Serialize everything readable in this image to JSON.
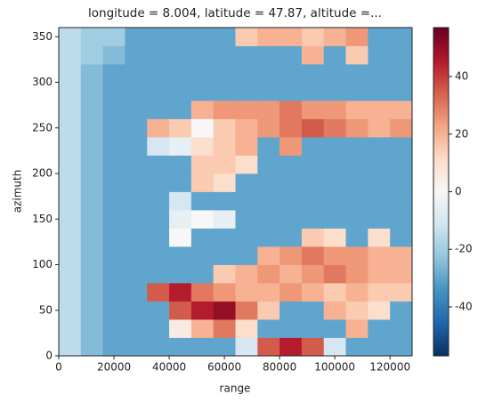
{
  "chart_data": {
    "type": "heatmap",
    "title": "longitude = 8.004, latitude = 47.87, altitude =...",
    "xlabel": "range",
    "ylabel": "azimuth",
    "x": [
      0,
      8000,
      16000,
      24000,
      32000,
      40000,
      48000,
      56000,
      64000,
      72000,
      80000,
      88000,
      96000,
      104000,
      112000,
      120000,
      128000
    ],
    "y": [
      0,
      20,
      40,
      60,
      80,
      100,
      120,
      140,
      160,
      180,
      200,
      220,
      240,
      260,
      280,
      300,
      320,
      340,
      360
    ],
    "values": [
      [
        -15,
        -25,
        -30,
        -30,
        -30,
        -30,
        -30,
        -30,
        -10,
        35,
        45,
        35,
        -10,
        -30,
        -30,
        -30
      ],
      [
        -15,
        -25,
        -30,
        -30,
        -30,
        5,
        20,
        30,
        10,
        -30,
        -30,
        -30,
        -30,
        20,
        -30,
        -30
      ],
      [
        -15,
        -25,
        -30,
        -30,
        -30,
        35,
        45,
        50,
        30,
        15,
        -30,
        -30,
        20,
        15,
        10,
        -30
      ],
      [
        -15,
        -25,
        -30,
        -30,
        35,
        45,
        30,
        25,
        20,
        20,
        25,
        20,
        15,
        20,
        15,
        15
      ],
      [
        -15,
        -25,
        -30,
        -30,
        -30,
        -30,
        -30,
        15,
        20,
        25,
        20,
        25,
        30,
        25,
        20,
        20
      ],
      [
        -15,
        -25,
        -30,
        -30,
        -30,
        -30,
        -30,
        -30,
        -30,
        20,
        25,
        30,
        25,
        25,
        20,
        20
      ],
      [
        -15,
        -25,
        -30,
        -30,
        -30,
        0,
        -30,
        -30,
        -30,
        -30,
        -30,
        15,
        10,
        -30,
        10,
        -30
      ],
      [
        -15,
        -25,
        -30,
        -30,
        -30,
        -5,
        0,
        -5,
        -30,
        -30,
        -30,
        -30,
        -30,
        -30,
        -30,
        -30
      ],
      [
        -15,
        -25,
        -30,
        -30,
        -30,
        -10,
        -30,
        -30,
        -30,
        -30,
        -30,
        -30,
        -30,
        -30,
        -30,
        -30
      ],
      [
        -15,
        -25,
        -30,
        -30,
        -30,
        -30,
        15,
        10,
        -30,
        -30,
        -30,
        -30,
        -30,
        -30,
        -30,
        -30
      ],
      [
        -15,
        -25,
        -30,
        -30,
        -30,
        -30,
        15,
        15,
        10,
        -30,
        -30,
        -30,
        -30,
        -30,
        -30,
        -30
      ],
      [
        -15,
        -25,
        -30,
        -30,
        -10,
        -5,
        10,
        15,
        20,
        -30,
        25,
        -30,
        -30,
        -30,
        -30,
        -30
      ],
      [
        -15,
        -25,
        -30,
        -30,
        20,
        15,
        0,
        15,
        20,
        25,
        30,
        35,
        30,
        25,
        20,
        25
      ],
      [
        -15,
        -25,
        -30,
        -30,
        -30,
        -30,
        20,
        25,
        25,
        25,
        30,
        25,
        25,
        20,
        20,
        20
      ],
      [
        -15,
        -25,
        -30,
        -30,
        -30,
        -30,
        -30,
        -30,
        -30,
        -30,
        -30,
        -30,
        -30,
        -30,
        -30,
        -30
      ],
      [
        -15,
        -25,
        -30,
        -30,
        -30,
        -30,
        -30,
        -30,
        -30,
        -30,
        -30,
        -30,
        -30,
        -30,
        -30,
        -30
      ],
      [
        -15,
        -20,
        -25,
        -30,
        -30,
        -30,
        -30,
        -30,
        -30,
        -30,
        -30,
        20,
        -30,
        15,
        -30,
        -30
      ],
      [
        -15,
        -20,
        -20,
        -30,
        -30,
        -30,
        -30,
        -30,
        15,
        20,
        20,
        15,
        20,
        25,
        -30,
        -30
      ]
    ],
    "xlim": [
      0,
      128000
    ],
    "xticks": [
      0,
      20000,
      40000,
      60000,
      80000,
      100000,
      120000
    ],
    "ylim": [
      0,
      360
    ],
    "yticks": [
      0,
      50,
      100,
      150,
      200,
      250,
      300,
      350
    ],
    "clim": [
      -57,
      57
    ],
    "colorbar_ticks": [
      -40,
      -20,
      0,
      20,
      40
    ],
    "colormap": [
      "#053061",
      "#2166ac",
      "#4393c3",
      "#92c5de",
      "#d1e5f0",
      "#f7f7f7",
      "#fddbc7",
      "#f4a582",
      "#d6604d",
      "#b2182b",
      "#67001f"
    ]
  }
}
